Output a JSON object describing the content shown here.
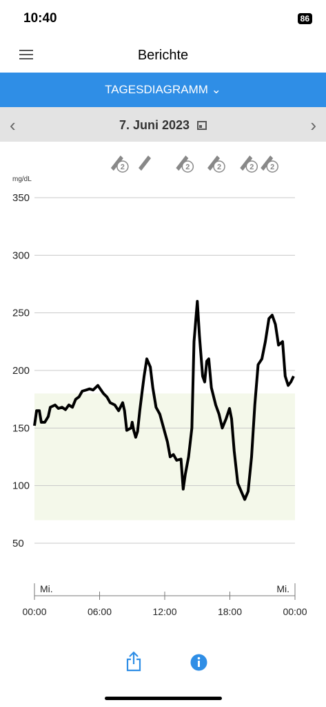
{
  "status": {
    "time": "10:40",
    "battery": "86"
  },
  "header": {
    "title": "Berichte"
  },
  "tab": {
    "label": "TAGESDIAGRAMM"
  },
  "date_bar": {
    "date": "7. Juni 2023"
  },
  "chart_data": {
    "type": "line",
    "y_unit": "mg/dL",
    "color": "#000000",
    "x": [
      0,
      0.2,
      0.45,
      0.63,
      0.95,
      1.27,
      1.46,
      1.9,
      2.2,
      2.54,
      2.86,
      3.17,
      3.5,
      3.8,
      4.1,
      4.4,
      4.76,
      5.08,
      5.4,
      5.84,
      6.35,
      6.67,
      6.98,
      7.4,
      7.75,
      8.13,
      8.3,
      8.5,
      8.9,
      9.0,
      9.14,
      9.33,
      9.5,
      9.7,
      9.9,
      10.1,
      10.35,
      10.67,
      10.9,
      11.2,
      11.55,
      11.9,
      12.25,
      12.5,
      12.8,
      13.1,
      13.5,
      13.7,
      13.9,
      14.2,
      14.5,
      14.7,
      15.0,
      15.2,
      15.49,
      15.68,
      15.87,
      16.06,
      16.3,
      16.7,
      17.0,
      17.3,
      17.65,
      17.97,
      18.16,
      18.4,
      18.73,
      19.05,
      19.37,
      19.68,
      20.0,
      20.3,
      20.6,
      20.95,
      21.27,
      21.6,
      21.9,
      22.2,
      22.48,
      22.86,
      23.1,
      23.37,
      23.62,
      23.87
    ],
    "values": [
      152,
      165,
      165,
      155,
      155,
      160,
      168,
      170,
      167,
      168,
      166,
      170,
      168,
      175,
      177,
      182,
      183,
      184,
      183,
      187,
      180,
      177,
      172,
      170,
      165,
      172,
      165,
      148,
      150,
      155,
      148,
      142,
      147,
      165,
      180,
      195,
      210,
      203,
      185,
      168,
      162,
      150,
      138,
      125,
      127,
      122,
      123,
      97,
      110,
      125,
      150,
      225,
      260,
      230,
      195,
      190,
      208,
      210,
      185,
      170,
      162,
      150,
      158,
      167,
      158,
      130,
      102,
      95,
      88,
      95,
      125,
      170,
      205,
      210,
      225,
      245,
      248,
      240,
      222,
      225,
      195,
      187,
      190,
      195
    ],
    "xlim": [
      0,
      24
    ],
    "ylim": [
      50,
      350
    ],
    "xticks": [
      {
        "value": 0,
        "label": "00:00"
      },
      {
        "value": 6,
        "label": "06:00"
      },
      {
        "value": 12,
        "label": "12:00"
      },
      {
        "value": 18,
        "label": "18:00"
      },
      {
        "value": 24,
        "label": "00:00"
      }
    ],
    "yticks": [
      50,
      100,
      150,
      200,
      250,
      300,
      350
    ],
    "grid": true,
    "target_range": [
      70,
      180
    ],
    "target_color": "#f4f8ea",
    "day_labels": [
      {
        "value": 0,
        "label": "Mi."
      },
      {
        "value": 24,
        "label": "Mi."
      }
    ],
    "events": [
      {
        "x": 7.8,
        "label": "2"
      },
      {
        "x": 10.35
      },
      {
        "x": 13.8,
        "label": "2"
      },
      {
        "x": 16.7,
        "label": "2"
      },
      {
        "x": 19.7,
        "label": "2"
      },
      {
        "x": 21.6,
        "label": "2"
      }
    ]
  }
}
